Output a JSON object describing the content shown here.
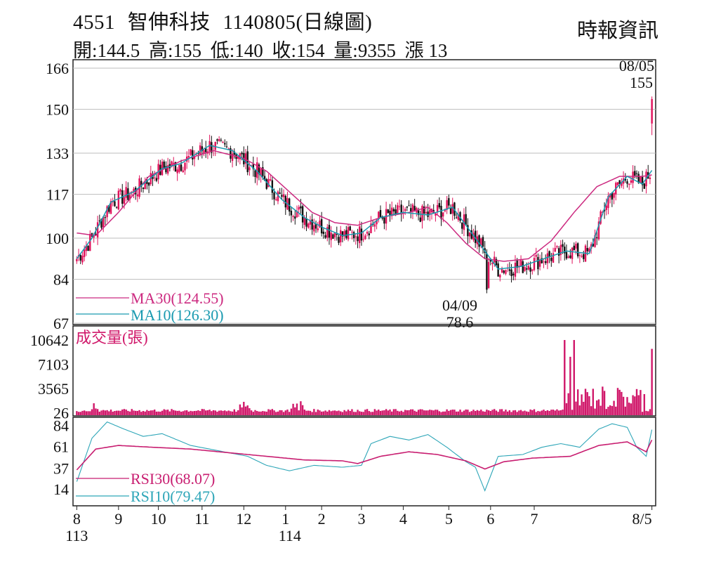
{
  "header": {
    "code": "4551",
    "name": "智伸科技",
    "date_type": "1140805(日線圖)",
    "source": "時報資訊",
    "open": "開:144.5",
    "high": "高:155",
    "low": "低:140",
    "close": "收:154",
    "volume": "量:9355",
    "change": "漲 13"
  },
  "colors": {
    "up": "#e0105a",
    "down": "#111111",
    "ma30": "#cc2a80",
    "ma10": "#1a9ab0",
    "volume": "#d0186a",
    "rsi30": "#c81d70",
    "rsi10": "#2ea6b8",
    "grid": "#bdbdbd"
  },
  "chart_data": [
    {
      "type": "candlestick",
      "panel": "price",
      "yticks": [
        "166",
        "150",
        "133",
        "117",
        "100",
        "84",
        "67"
      ],
      "ylim": [
        67,
        166
      ],
      "legend": [
        {
          "name": "MA30(124.55)",
          "color": "#cc2a80"
        },
        {
          "name": "MA10(126.30)",
          "color": "#1a9ab0"
        }
      ],
      "annotations": [
        {
          "date": "08/05",
          "value": "155",
          "position": "high"
        },
        {
          "date": "04/09",
          "value": "78.6",
          "position": "low"
        }
      ],
      "last_bar": {
        "open": 144.5,
        "high": 155,
        "low": 140,
        "close": 154
      },
      "series_note": "~245 daily candles, Aug 113 to Aug 5 114",
      "ma30_anchor_points": [
        [
          0,
          102
        ],
        [
          10,
          101
        ],
        [
          22,
          110
        ],
        [
          38,
          124
        ],
        [
          55,
          130
        ],
        [
          72,
          134
        ],
        [
          88,
          131
        ],
        [
          100,
          126
        ],
        [
          112,
          118
        ],
        [
          124,
          110
        ],
        [
          136,
          106
        ],
        [
          148,
          105
        ],
        [
          160,
          108
        ],
        [
          175,
          110
        ],
        [
          185,
          112
        ],
        [
          195,
          106
        ],
        [
          205,
          98
        ],
        [
          215,
          92
        ],
        [
          225,
          91
        ],
        [
          238,
          92
        ],
        [
          250,
          99
        ],
        [
          262,
          110
        ],
        [
          274,
          120
        ],
        [
          286,
          124
        ],
        [
          298,
          124
        ],
        [
          303,
          124.55
        ]
      ],
      "ma10_anchor_points": [
        [
          0,
          92
        ],
        [
          8,
          100
        ],
        [
          18,
          114
        ],
        [
          30,
          118
        ],
        [
          45,
          127
        ],
        [
          55,
          129
        ],
        [
          70,
          136
        ],
        [
          82,
          134
        ],
        [
          95,
          126
        ],
        [
          108,
          115
        ],
        [
          120,
          108
        ],
        [
          130,
          104
        ],
        [
          140,
          101
        ],
        [
          150,
          102
        ],
        [
          160,
          108
        ],
        [
          172,
          110
        ],
        [
          185,
          109
        ],
        [
          198,
          112
        ],
        [
          210,
          100
        ],
        [
          222,
          88
        ],
        [
          234,
          89
        ],
        [
          246,
          92
        ],
        [
          258,
          95
        ],
        [
          270,
          94
        ],
        [
          280,
          116
        ],
        [
          290,
          124
        ],
        [
          298,
          121
        ],
        [
          303,
          126.3
        ]
      ]
    },
    {
      "type": "bar",
      "panel": "volume",
      "ylabel": "成交量(張)",
      "yticks": [
        "10642",
        "7103",
        "3565",
        "26"
      ],
      "ylim": [
        0,
        10642
      ],
      "note": "daily volume bars; large spikes in late June/July 114; last bar 9355"
    },
    {
      "type": "line",
      "panel": "rsi",
      "yticks": [
        "84",
        "61",
        "37",
        "14"
      ],
      "ylim": [
        0,
        90
      ],
      "legend": [
        {
          "name": "RSI30(68.07)",
          "color": "#c81d70"
        },
        {
          "name": "RSI10(79.47)",
          "color": "#2ea6b8"
        }
      ],
      "rsi30_anchor_points": [
        [
          0,
          35
        ],
        [
          10,
          58
        ],
        [
          22,
          62
        ],
        [
          40,
          60
        ],
        [
          60,
          58
        ],
        [
          80,
          54
        ],
        [
          100,
          50
        ],
        [
          120,
          46
        ],
        [
          140,
          45
        ],
        [
          148,
          42
        ],
        [
          160,
          50
        ],
        [
          175,
          55
        ],
        [
          190,
          52
        ],
        [
          205,
          45
        ],
        [
          215,
          36
        ],
        [
          225,
          44
        ],
        [
          240,
          48
        ],
        [
          260,
          50
        ],
        [
          275,
          62
        ],
        [
          290,
          66
        ],
        [
          300,
          55
        ],
        [
          303,
          68.07
        ]
      ],
      "rsi10_anchor_points": [
        [
          0,
          22
        ],
        [
          8,
          70
        ],
        [
          16,
          88
        ],
        [
          25,
          80
        ],
        [
          35,
          72
        ],
        [
          45,
          75
        ],
        [
          60,
          62
        ],
        [
          75,
          56
        ],
        [
          90,
          50
        ],
        [
          100,
          40
        ],
        [
          112,
          34
        ],
        [
          125,
          40
        ],
        [
          140,
          38
        ],
        [
          150,
          40
        ],
        [
          155,
          64
        ],
        [
          165,
          72
        ],
        [
          175,
          68
        ],
        [
          185,
          74
        ],
        [
          195,
          60
        ],
        [
          205,
          44
        ],
        [
          210,
          38
        ],
        [
          215,
          12
        ],
        [
          222,
          50
        ],
        [
          235,
          52
        ],
        [
          245,
          60
        ],
        [
          255,
          64
        ],
        [
          265,
          60
        ],
        [
          275,
          80
        ],
        [
          282,
          86
        ],
        [
          290,
          82
        ],
        [
          295,
          60
        ],
        [
          300,
          50
        ],
        [
          303,
          79.47
        ]
      ]
    }
  ],
  "x_axis": {
    "months": [
      "8",
      "9",
      "10",
      "11",
      "12",
      "1",
      "2",
      "3",
      "4",
      "5",
      "6",
      "7",
      "8/5"
    ],
    "years": [
      "113",
      "114"
    ]
  }
}
